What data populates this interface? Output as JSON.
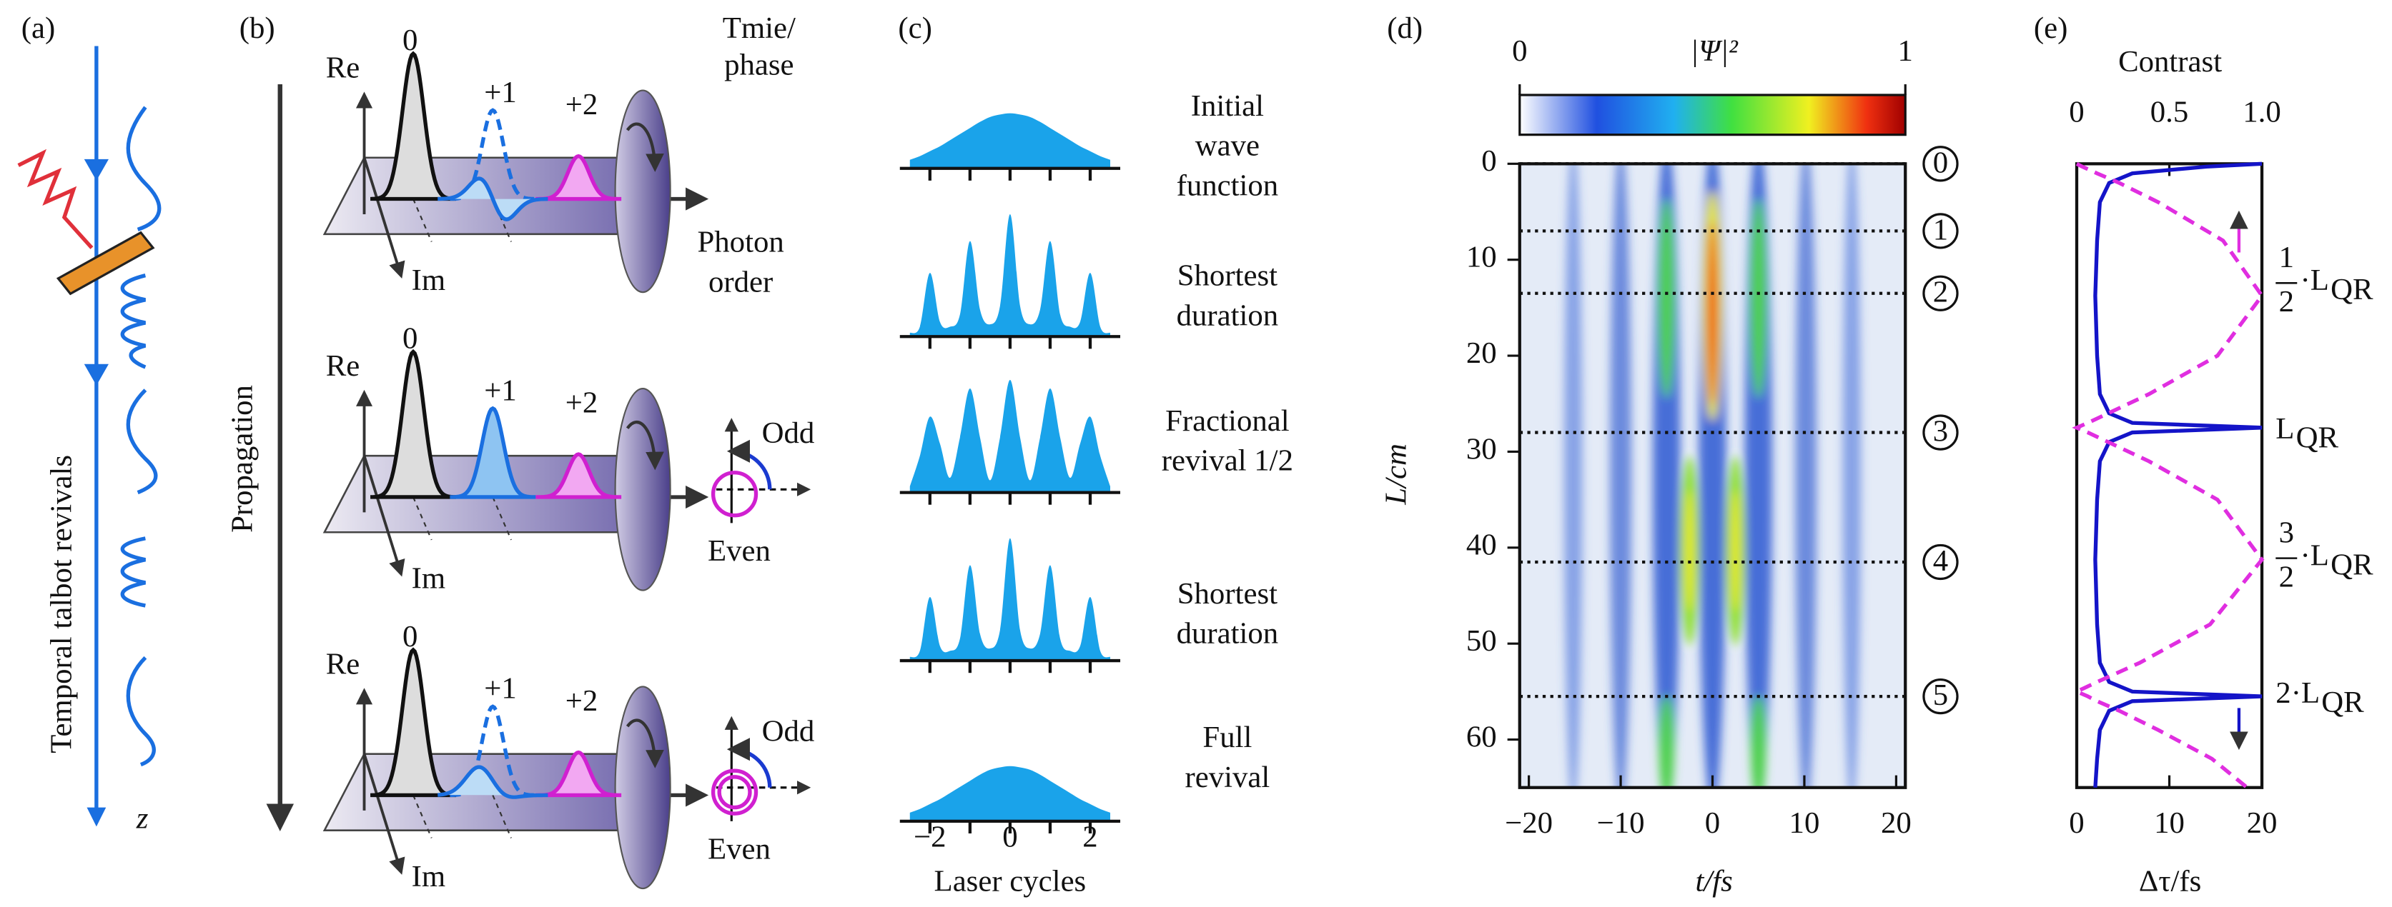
{
  "panel_labels": [
    "(a)",
    "(b)",
    "(c)",
    "(d)",
    "(e)"
  ],
  "a": {
    "axis_label": "Temporal talbot revivals",
    "z": "z"
  },
  "b": {
    "propagation": "Propagation",
    "time_phase": [
      "Tmie/",
      "phase"
    ],
    "photon_order": [
      "Photon",
      "order"
    ],
    "rows": [
      {
        "re": "Re",
        "im": "Im",
        "orders": [
          "0",
          "+1",
          "+2"
        ]
      },
      {
        "re": "Re",
        "im": "Im",
        "orders": [
          "0",
          "+1",
          "+2"
        ]
      },
      {
        "re": "Re",
        "im": "Im",
        "orders": [
          "0",
          "+1",
          "+2"
        ]
      }
    ],
    "odd": [
      "Odd",
      "Odd"
    ],
    "even": [
      "Even",
      "Even"
    ]
  },
  "chart_data": [
    {
      "type": "area",
      "xlabel": "Laser cycles",
      "color": "#1aa3ea",
      "xlim": [
        -2.75,
        2.75
      ],
      "xticks": [
        {
          "value": -2,
          "label": "−2"
        },
        0,
        2
      ],
      "xminorticks": [
        -1,
        1
      ],
      "x": [
        -2.5,
        -2.25,
        -2,
        -1.75,
        -1.5,
        -1.25,
        -1,
        -0.75,
        -0.5,
        -0.25,
        0,
        0.25,
        0.5,
        0.75,
        1,
        1.25,
        1.5,
        1.75,
        2,
        2.25,
        2.5
      ],
      "rows": [
        {
          "label": [
            "Initial",
            "wave",
            "function"
          ],
          "values": [
            0.07,
            0.1,
            0.14,
            0.18,
            0.23,
            0.28,
            0.33,
            0.38,
            0.42,
            0.44,
            0.45,
            0.44,
            0.42,
            0.38,
            0.33,
            0.28,
            0.23,
            0.18,
            0.14,
            0.1,
            0.07
          ]
        },
        {
          "label": [
            "Shortest",
            "duration"
          ],
          "values": [
            0.03,
            0.08,
            0.52,
            0.12,
            0.08,
            0.18,
            0.78,
            0.22,
            0.1,
            0.25,
            1,
            0.25,
            0.1,
            0.22,
            0.78,
            0.18,
            0.08,
            0.12,
            0.52,
            0.08,
            0.03
          ]
        },
        {
          "label": [
            "Fractional",
            "revival 1/2"
          ],
          "values": [
            0.05,
            0.3,
            0.62,
            0.4,
            0.12,
            0.45,
            0.85,
            0.45,
            0.1,
            0.45,
            0.92,
            0.45,
            0.1,
            0.45,
            0.85,
            0.45,
            0.12,
            0.4,
            0.62,
            0.3,
            0.05
          ]
        },
        {
          "label": [
            "Shortest",
            "duration"
          ],
          "values": [
            0.03,
            0.08,
            0.52,
            0.12,
            0.08,
            0.18,
            0.78,
            0.22,
            0.1,
            0.25,
            1,
            0.25,
            0.1,
            0.22,
            0.78,
            0.18,
            0.08,
            0.12,
            0.52,
            0.08,
            0.03
          ]
        },
        {
          "label": [
            "Full",
            "revival"
          ],
          "values": [
            0.07,
            0.1,
            0.14,
            0.18,
            0.23,
            0.28,
            0.33,
            0.38,
            0.42,
            0.44,
            0.45,
            0.44,
            0.42,
            0.38,
            0.33,
            0.28,
            0.23,
            0.18,
            0.14,
            0.1,
            0.07
          ]
        }
      ]
    },
    {
      "type": "heatmap",
      "xlabel": "t/fs",
      "ylabel": "L/cm",
      "xlim": [
        -21,
        21
      ],
      "xticks": [
        {
          "value": -20,
          "label": "−20"
        },
        {
          "value": -10,
          "label": "−10"
        },
        0,
        10,
        20
      ],
      "ylim": [
        0,
        65
      ],
      "yticks": [
        0,
        10,
        20,
        30,
        40,
        50,
        60
      ],
      "colorbar": {
        "label": "|Ψ|²",
        "ticks": [
          0,
          1
        ]
      },
      "markers": {
        "values": [
          0,
          7,
          13.5,
          28,
          41.5,
          55.5
        ],
        "labels": [
          "0",
          "1",
          "2",
          "3",
          "4",
          "5"
        ]
      }
    },
    {
      "type": "line",
      "xlabel": "Δτ/fs",
      "x2label": "Contrast",
      "xlim": [
        0,
        20
      ],
      "xticks": [
        0,
        10,
        20
      ],
      "x2lim": [
        0,
        1
      ],
      "x2ticks": [
        0,
        0.5,
        {
          "value": 1,
          "label": "1.0"
        }
      ],
      "ylim": [
        0,
        65
      ],
      "y": [
        0,
        0.3,
        1,
        2,
        4,
        8,
        13.75,
        20,
        24,
        26,
        27,
        27.5,
        28,
        29,
        31,
        35,
        41.25,
        48,
        52,
        54,
        55,
        55.5,
        56,
        57,
        59,
        62,
        65
      ],
      "series": [
        {
          "color": "#1414c8",
          "values": [
            20,
            14,
            6,
            3.5,
            2.5,
            2.2,
            2,
            2.2,
            2.5,
            3.5,
            6,
            20,
            6,
            3.5,
            2.5,
            2.2,
            2,
            2.2,
            2.5,
            3.5,
            6,
            20,
            6,
            3.5,
            2.5,
            2.2,
            2
          ]
        },
        {
          "color": "#e02ee0",
          "dashed": true,
          "axis": "x2",
          "values": [
            0,
            0.03,
            0.11,
            0.23,
            0.44,
            0.79,
            1,
            0.76,
            0.39,
            0.17,
            0.06,
            0,
            0.06,
            0.17,
            0.39,
            0.76,
            1,
            0.72,
            0.34,
            0.11,
            0,
            0.06,
            0.11,
            0.23,
            0.44,
            0.73,
            0.92
          ]
        }
      ],
      "annotations": [
        {
          "num": "1",
          "den": "2",
          "text": "·L",
          "sub": "QR"
        },
        {
          "text": "L",
          "sub": "QR"
        },
        {
          "num": "3",
          "den": "2",
          "text": "·L",
          "sub": "QR"
        },
        {
          "text": "2·L",
          "sub": "QR"
        }
      ]
    }
  ]
}
